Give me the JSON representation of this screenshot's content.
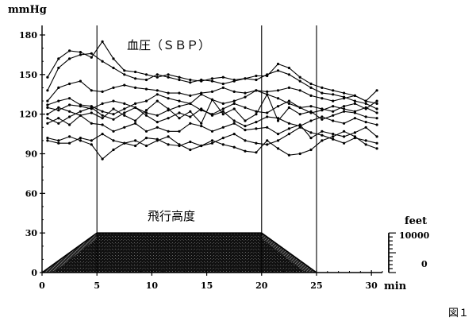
{
  "chart_data": {
    "type": "line",
    "title": "血圧（ＳＢＰ）",
    "ylabel": "mmHg",
    "xlabel": "min",
    "xlim": [
      0,
      31
    ],
    "ylim": [
      0,
      180
    ],
    "x_ticks": [
      0,
      5,
      10,
      15,
      20,
      25,
      30
    ],
    "y_ticks": [
      0,
      30,
      60,
      90,
      120,
      150,
      180
    ],
    "vertical_markers": [
      5,
      20,
      25
    ],
    "x": [
      0.5,
      1.5,
      2.5,
      3.5,
      4.5,
      5.5,
      6.5,
      7.5,
      8.5,
      9.5,
      10.5,
      11.5,
      12.5,
      13.5,
      14.5,
      15.5,
      16.5,
      17.5,
      18.5,
      19.5,
      20.5,
      21.5,
      22.5,
      23.5,
      24.5,
      25.5,
      26.5,
      27.5,
      28.5,
      29.5,
      30.5
    ],
    "series": [
      {
        "values": [
          148,
          162,
          168,
          167,
          163,
          175,
          162,
          153,
          152,
          150,
          148,
          150,
          148,
          146,
          145,
          147,
          148,
          146,
          147,
          149,
          149,
          158,
          155,
          148,
          143,
          140,
          138,
          136,
          134,
          130,
          128
        ]
      },
      {
        "values": [
          138,
          155,
          162,
          165,
          166,
          160,
          155,
          150,
          147,
          146,
          150,
          148,
          146,
          144,
          146,
          145,
          143,
          145,
          147,
          146,
          150,
          153,
          150,
          145,
          140,
          136,
          135,
          133,
          130,
          128,
          124
        ]
      },
      {
        "values": [
          130,
          140,
          143,
          145,
          138,
          137,
          140,
          142,
          140,
          139,
          138,
          136,
          136,
          134,
          136,
          137,
          140,
          137,
          136,
          138,
          137,
          138,
          140,
          138,
          134,
          132,
          130,
          132,
          134,
          130,
          138
        ]
      },
      {
        "values": [
          127,
          130,
          132,
          127,
          126,
          122,
          120,
          124,
          128,
          130,
          135,
          132,
          130,
          128,
          135,
          131,
          128,
          130,
          133,
          138,
          135,
          132,
          128,
          125,
          126,
          124,
          122,
          126,
          128,
          124,
          130
        ]
      },
      {
        "values": [
          125,
          123,
          127,
          126,
          124,
          128,
          130,
          128,
          125,
          121,
          119,
          123,
          126,
          128,
          123,
          120,
          124,
          128,
          125,
          122,
          121,
          126,
          130,
          125,
          121,
          123,
          126,
          124,
          122,
          125,
          121
        ]
      },
      {
        "values": [
          120,
          125,
          122,
          119,
          121,
          117,
          124,
          119,
          115,
          123,
          130,
          124,
          117,
          122,
          113,
          131,
          120,
          124,
          115,
          120,
          135,
          115,
          125,
          120,
          122,
          116,
          119,
          122,
          121,
          118,
          117
        ]
      },
      {
        "values": [
          117,
          113,
          118,
          122,
          125,
          119,
          116,
          121,
          125,
          119,
          114,
          117,
          121,
          118,
          124,
          119,
          122,
          115,
          111,
          114,
          118,
          117,
          113,
          111,
          115,
          118,
          115,
          113,
          117,
          114,
          112
        ]
      },
      {
        "values": [
          113,
          117,
          112,
          119,
          113,
          112,
          107,
          110,
          113,
          107,
          110,
          107,
          107,
          113,
          111,
          107,
          110,
          113,
          108,
          109,
          110,
          105,
          109,
          112,
          102,
          107,
          105,
          103,
          106,
          110,
          103
        ]
      },
      {
        "values": [
          102,
          100,
          103,
          100,
          97,
          86,
          93,
          98,
          100,
          96,
          100,
          103,
          97,
          93,
          96,
          100,
          97,
          95,
          92,
          91,
          100,
          94,
          89,
          90,
          93,
          100,
          103,
          107,
          103,
          97,
          94
        ]
      },
      {
        "values": [
          100,
          98,
          98,
          102,
          100,
          105,
          100,
          98,
          96,
          102,
          101,
          97,
          96,
          99,
          96,
          98,
          102,
          105,
          100,
          98,
          97,
          100,
          105,
          110,
          106,
          104,
          101,
          98,
          102,
          100,
          98
        ]
      }
    ],
    "altitude": {
      "title": "飛行高度",
      "unit": "feet",
      "scale_labels": [
        "10000",
        "0"
      ],
      "profile": [
        [
          0,
          0
        ],
        [
          5,
          10000
        ],
        [
          20,
          10000
        ],
        [
          25,
          0
        ]
      ]
    },
    "figure_label": "図１"
  }
}
